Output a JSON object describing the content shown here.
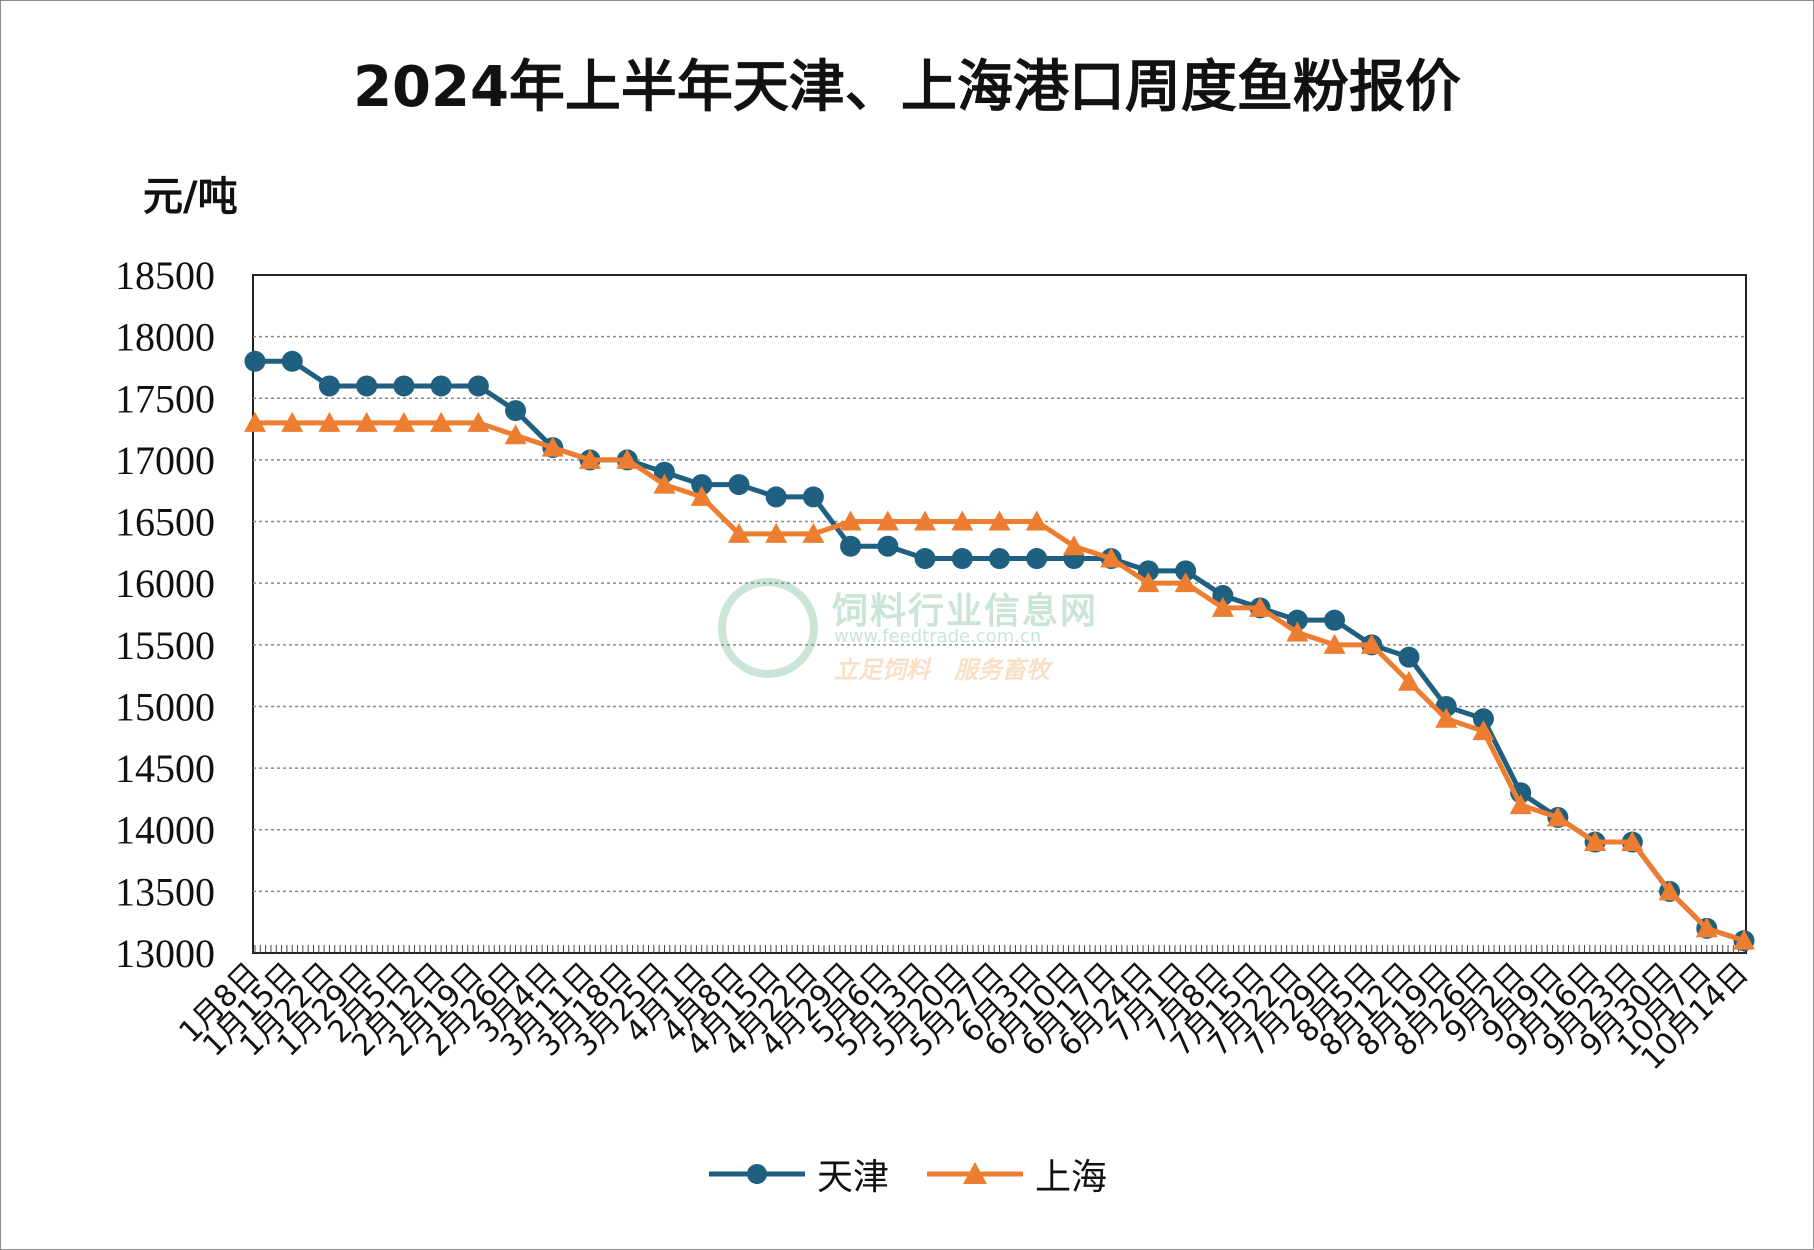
{
  "chart_data": {
    "type": "line",
    "title": "2024年上半年天津、上海港口周度鱼粉报价",
    "ylabel": "元/吨",
    "xlabel": "",
    "ylim": [
      13000,
      18500
    ],
    "yticks": [
      13000,
      13500,
      14000,
      14500,
      15000,
      15500,
      16000,
      16500,
      17000,
      17500,
      18000,
      18500
    ],
    "grid": true,
    "legend_position": "bottom",
    "categories": [
      "1月8日",
      "1月15日",
      "1月22日",
      "1月29日",
      "2月5日",
      "2月12日",
      "2月19日",
      "2月26日",
      "3月4日",
      "3月11日",
      "3月18日",
      "3月25日",
      "4月1日",
      "4月8日",
      "4月15日",
      "4月22日",
      "4月29日",
      "5月6日",
      "5月13日",
      "5月20日",
      "5月27日",
      "6月3日",
      "6月10日",
      "6月17日",
      "6月24日",
      "7月1日",
      "7月8日",
      "7月15日",
      "7月22日",
      "7月29日",
      "8月5日",
      "8月12日",
      "8月19日",
      "8月26日",
      "9月2日",
      "9月9日",
      "9月16日",
      "9月23日",
      "9月30日",
      "10月7日",
      "10月14日"
    ],
    "series": [
      {
        "name": "天津",
        "color": "#1f5f7f",
        "marker": "circle",
        "values": [
          17800,
          17800,
          17600,
          17600,
          17600,
          17600,
          17600,
          17400,
          17100,
          17000,
          17000,
          16900,
          16800,
          16800,
          16700,
          16700,
          16300,
          16300,
          16200,
          16200,
          16200,
          16200,
          16200,
          16200,
          16100,
          16100,
          15900,
          15800,
          15700,
          15700,
          15500,
          15400,
          15000,
          14900,
          14300,
          14100,
          13900,
          13900,
          13500,
          13200,
          13100
        ]
      },
      {
        "name": "上海",
        "color": "#ed7d31",
        "marker": "triangle",
        "values": [
          17300,
          17300,
          17300,
          17300,
          17300,
          17300,
          17300,
          17200,
          17100,
          17000,
          17000,
          16800,
          16700,
          16400,
          16400,
          16400,
          16500,
          16500,
          16500,
          16500,
          16500,
          16500,
          16300,
          16200,
          16000,
          16000,
          15800,
          15800,
          15600,
          15500,
          15500,
          15200,
          14900,
          14800,
          14200,
          14100,
          13900,
          13900,
          13500,
          13200,
          13100
        ]
      }
    ]
  },
  "watermark": {
    "name": "饲料行业信息网",
    "url": "www.feedtrade.com.cn",
    "slogan": "立足饲料　服务畜牧"
  }
}
